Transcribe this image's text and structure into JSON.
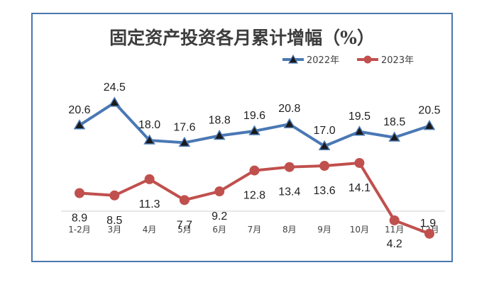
{
  "chart_data": {
    "type": "line",
    "title": "固定资产投资各月累计增幅（%）",
    "categories": [
      "1-2月",
      "3月",
      "4月",
      "5月",
      "6月",
      "7月",
      "8月",
      "9月",
      "10月",
      "11月",
      "12月"
    ],
    "series": [
      {
        "name": "2022年",
        "color": "#4a78b4",
        "marker": "triangle",
        "values": [
          20.6,
          24.5,
          18.0,
          17.6,
          18.8,
          19.6,
          20.8,
          17.0,
          19.5,
          18.5,
          20.5
        ],
        "labels": [
          "20.6",
          "24.5",
          "18.0",
          "17.6",
          "18.8",
          "19.6",
          "20.8",
          "17.0",
          "19.5",
          "18.5",
          "20.5"
        ]
      },
      {
        "name": "2023年",
        "color": "#c0504d",
        "marker": "circle",
        "values": [
          8.9,
          8.5,
          11.3,
          7.7,
          9.2,
          12.8,
          13.4,
          13.6,
          14.1,
          4.2,
          1.9
        ],
        "labels": [
          "8.9",
          "8.5",
          "11.3",
          "7.7",
          "9.2",
          "12.8",
          "13.4",
          "13.6",
          "14.1",
          "4.2",
          "1.9"
        ]
      }
    ],
    "legend_position": "top-right",
    "grid": false
  }
}
